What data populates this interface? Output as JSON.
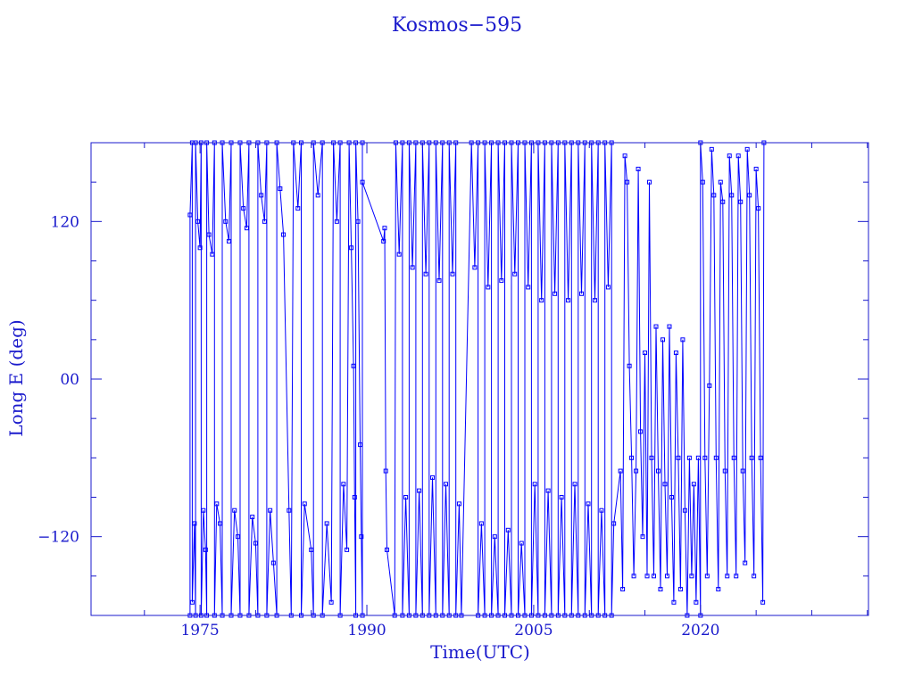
{
  "chart_data": {
    "type": "line",
    "title": "Kosmos−595",
    "xlabel": "Time(UTC)",
    "ylabel": "Long E (deg)",
    "xlim": [
      1965.2,
      2035.1
    ],
    "ylim": [
      -180,
      180
    ],
    "x_ticks": [
      {
        "value": 1975,
        "label": "1975"
      },
      {
        "value": 1990,
        "label": "1990"
      },
      {
        "value": 2005,
        "label": "2005"
      },
      {
        "value": 2020,
        "label": "2020"
      }
    ],
    "y_ticks": [
      {
        "value": 120,
        "label": "120"
      },
      {
        "value": 0,
        "label": "00"
      },
      {
        "value": -120,
        "label": "-120"
      }
    ],
    "x_minor_step": 5,
    "y_minor_step": 30,
    "grid": false,
    "marker": "square",
    "color": "#0000ff",
    "series": [
      {
        "points": [
          [
            1974.1,
            -180
          ],
          [
            1974.1,
            125
          ],
          [
            1974.3,
            180
          ],
          [
            1974.3,
            -170
          ],
          [
            1974.5,
            -110
          ],
          [
            1974.6,
            -180
          ],
          [
            1974.6,
            180
          ],
          [
            1974.8,
            120
          ],
          [
            1975.0,
            100
          ],
          [
            1975.1,
            180
          ],
          [
            1975.1,
            -180
          ],
          [
            1975.3,
            -100
          ],
          [
            1975.5,
            -130
          ],
          [
            1975.6,
            -180
          ],
          [
            1975.6,
            180
          ],
          [
            1975.8,
            110
          ],
          [
            1976.1,
            95
          ],
          [
            1976.3,
            180
          ],
          [
            1976.3,
            -180
          ],
          [
            1976.5,
            -95
          ],
          [
            1976.8,
            -110
          ],
          [
            1977.0,
            -180
          ],
          [
            1977.0,
            180
          ],
          [
            1977.3,
            120
          ],
          [
            1977.6,
            105
          ],
          [
            1977.8,
            180
          ],
          [
            1977.8,
            -180
          ],
          [
            1978.1,
            -100
          ],
          [
            1978.4,
            -120
          ],
          [
            1978.6,
            -180
          ],
          [
            1978.6,
            180
          ],
          [
            1978.9,
            130
          ],
          [
            1979.2,
            115
          ],
          [
            1979.4,
            180
          ],
          [
            1979.4,
            -180
          ],
          [
            1979.7,
            -105
          ],
          [
            1980.0,
            -125
          ],
          [
            1980.2,
            -180
          ],
          [
            1980.2,
            180
          ],
          [
            1980.5,
            140
          ],
          [
            1980.8,
            120
          ],
          [
            1981.0,
            180
          ],
          [
            1981.0,
            -180
          ],
          [
            1981.3,
            -100
          ],
          [
            1981.6,
            -140
          ],
          [
            1981.9,
            -180
          ],
          [
            1981.9,
            180
          ],
          [
            1982.2,
            145
          ],
          [
            1982.5,
            110
          ],
          [
            1983.0,
            -100
          ],
          [
            1983.2,
            -180
          ],
          [
            1983.4,
            180
          ],
          [
            1983.8,
            130
          ],
          [
            1984.1,
            180
          ],
          [
            1984.1,
            -180
          ],
          [
            1984.4,
            -95
          ],
          [
            1985.0,
            -130
          ],
          [
            1985.2,
            -180
          ],
          [
            1985.2,
            180
          ],
          [
            1985.6,
            140
          ],
          [
            1986.0,
            180
          ],
          [
            1986.0,
            -180
          ],
          [
            1986.4,
            -110
          ],
          [
            1986.8,
            -170
          ],
          [
            1987.0,
            180
          ],
          [
            1987.3,
            120
          ],
          [
            1987.6,
            180
          ],
          [
            1987.6,
            -180
          ],
          [
            1987.9,
            -80
          ],
          [
            1988.2,
            -130
          ],
          [
            1988.4,
            180
          ],
          [
            1988.6,
            100
          ],
          [
            1988.8,
            10
          ],
          [
            1988.9,
            -90
          ],
          [
            1989.0,
            -180
          ],
          [
            1989.0,
            180
          ],
          [
            1989.2,
            120
          ],
          [
            1989.4,
            -50
          ],
          [
            1989.5,
            -120
          ],
          [
            1989.6,
            -180
          ],
          [
            1989.6,
            180
          ],
          [
            1989.6,
            150
          ],
          [
            1991.5,
            105
          ],
          [
            1991.6,
            115
          ],
          [
            1991.7,
            -70
          ],
          [
            1991.8,
            -130
          ],
          [
            1992.5,
            -180
          ],
          [
            1992.6,
            180
          ],
          [
            1992.9,
            95
          ],
          [
            1993.2,
            180
          ],
          [
            1993.2,
            -180
          ],
          [
            1993.5,
            -90
          ],
          [
            1993.8,
            -180
          ],
          [
            1993.8,
            180
          ],
          [
            1994.1,
            85
          ],
          [
            1994.4,
            180
          ],
          [
            1994.4,
            -180
          ],
          [
            1994.7,
            -85
          ],
          [
            1995.0,
            -180
          ],
          [
            1995.0,
            180
          ],
          [
            1995.3,
            80
          ],
          [
            1995.6,
            180
          ],
          [
            1995.6,
            -180
          ],
          [
            1995.9,
            -75
          ],
          [
            1996.2,
            -180
          ],
          [
            1996.2,
            180
          ],
          [
            1996.5,
            75
          ],
          [
            1996.8,
            180
          ],
          [
            1996.8,
            -180
          ],
          [
            1997.1,
            -80
          ],
          [
            1997.4,
            -180
          ],
          [
            1997.4,
            180
          ],
          [
            1997.7,
            80
          ],
          [
            1998.0,
            180
          ],
          [
            1998.0,
            -180
          ],
          [
            1998.3,
            -95
          ],
          [
            1998.5,
            -180
          ],
          [
            1999.4,
            180
          ],
          [
            1999.7,
            85
          ],
          [
            2000.0,
            180
          ],
          [
            2000.0,
            -180
          ],
          [
            2000.3,
            -110
          ],
          [
            2000.6,
            -180
          ],
          [
            2000.6,
            180
          ],
          [
            2000.9,
            70
          ],
          [
            2001.2,
            180
          ],
          [
            2001.2,
            -180
          ],
          [
            2001.5,
            -120
          ],
          [
            2001.8,
            -180
          ],
          [
            2001.8,
            180
          ],
          [
            2002.1,
            75
          ],
          [
            2002.4,
            180
          ],
          [
            2002.4,
            -180
          ],
          [
            2002.7,
            -115
          ],
          [
            2003.0,
            -180
          ],
          [
            2003.0,
            180
          ],
          [
            2003.3,
            80
          ],
          [
            2003.6,
            180
          ],
          [
            2003.6,
            -180
          ],
          [
            2003.9,
            -125
          ],
          [
            2004.2,
            -180
          ],
          [
            2004.2,
            180
          ],
          [
            2004.5,
            70
          ],
          [
            2004.8,
            180
          ],
          [
            2004.8,
            -180
          ],
          [
            2005.1,
            -80
          ],
          [
            2005.4,
            -180
          ],
          [
            2005.4,
            180
          ],
          [
            2005.7,
            60
          ],
          [
            2006.0,
            180
          ],
          [
            2006.0,
            -180
          ],
          [
            2006.3,
            -85
          ],
          [
            2006.6,
            -180
          ],
          [
            2006.6,
            180
          ],
          [
            2006.9,
            65
          ],
          [
            2007.2,
            180
          ],
          [
            2007.2,
            -180
          ],
          [
            2007.5,
            -90
          ],
          [
            2007.8,
            -180
          ],
          [
            2007.8,
            180
          ],
          [
            2008.1,
            60
          ],
          [
            2008.4,
            180
          ],
          [
            2008.4,
            -180
          ],
          [
            2008.7,
            -80
          ],
          [
            2009.0,
            -180
          ],
          [
            2009.0,
            180
          ],
          [
            2009.3,
            65
          ],
          [
            2009.6,
            180
          ],
          [
            2009.6,
            -180
          ],
          [
            2009.9,
            -95
          ],
          [
            2010.2,
            -180
          ],
          [
            2010.2,
            180
          ],
          [
            2010.5,
            60
          ],
          [
            2010.8,
            180
          ],
          [
            2010.8,
            -180
          ],
          [
            2011.1,
            -100
          ],
          [
            2011.4,
            -180
          ],
          [
            2011.4,
            180
          ],
          [
            2011.7,
            70
          ],
          [
            2012.0,
            180
          ],
          [
            2012.0,
            -180
          ],
          [
            2012.2,
            -110
          ],
          [
            2012.8,
            -70
          ],
          [
            2013.0,
            -160
          ],
          [
            2013.2,
            170
          ],
          [
            2013.4,
            150
          ],
          [
            2013.6,
            10
          ],
          [
            2013.8,
            -60
          ],
          [
            2014.0,
            -150
          ],
          [
            2014.2,
            -70
          ],
          [
            2014.4,
            160
          ],
          [
            2014.6,
            -40
          ],
          [
            2014.8,
            -120
          ],
          [
            2015.0,
            20
          ],
          [
            2015.2,
            -150
          ],
          [
            2015.4,
            150
          ],
          [
            2015.6,
            -60
          ],
          [
            2015.8,
            -150
          ],
          [
            2016.0,
            40
          ],
          [
            2016.2,
            -70
          ],
          [
            2016.4,
            -160
          ],
          [
            2016.6,
            30
          ],
          [
            2016.8,
            -80
          ],
          [
            2017.0,
            -150
          ],
          [
            2017.2,
            40
          ],
          [
            2017.4,
            -90
          ],
          [
            2017.6,
            -170
          ],
          [
            2017.8,
            20
          ],
          [
            2018.0,
            -60
          ],
          [
            2018.2,
            -160
          ],
          [
            2018.4,
            30
          ],
          [
            2018.6,
            -100
          ],
          [
            2018.8,
            -180
          ],
          [
            2019.0,
            -60
          ],
          [
            2019.2,
            -150
          ],
          [
            2019.4,
            -80
          ],
          [
            2019.6,
            -170
          ],
          [
            2019.8,
            -60
          ],
          [
            2020.0,
            -180
          ],
          [
            2020.0,
            180
          ],
          [
            2020.2,
            150
          ],
          [
            2020.4,
            -60
          ],
          [
            2020.6,
            -150
          ],
          [
            2020.8,
            -5
          ],
          [
            2021.0,
            175
          ],
          [
            2021.2,
            140
          ],
          [
            2021.4,
            -60
          ],
          [
            2021.6,
            -160
          ],
          [
            2021.8,
            150
          ],
          [
            2022.0,
            135
          ],
          [
            2022.2,
            -70
          ],
          [
            2022.4,
            -150
          ],
          [
            2022.6,
            170
          ],
          [
            2022.8,
            140
          ],
          [
            2023.0,
            -60
          ],
          [
            2023.2,
            -150
          ],
          [
            2023.4,
            170
          ],
          [
            2023.6,
            135
          ],
          [
            2023.8,
            -70
          ],
          [
            2024.0,
            -140
          ],
          [
            2024.2,
            175
          ],
          [
            2024.4,
            140
          ],
          [
            2024.6,
            -60
          ],
          [
            2024.8,
            -150
          ],
          [
            2025.0,
            160
          ],
          [
            2025.2,
            130
          ],
          [
            2025.4,
            -60
          ],
          [
            2025.6,
            -170
          ],
          [
            2025.7,
            180
          ]
        ]
      }
    ]
  }
}
